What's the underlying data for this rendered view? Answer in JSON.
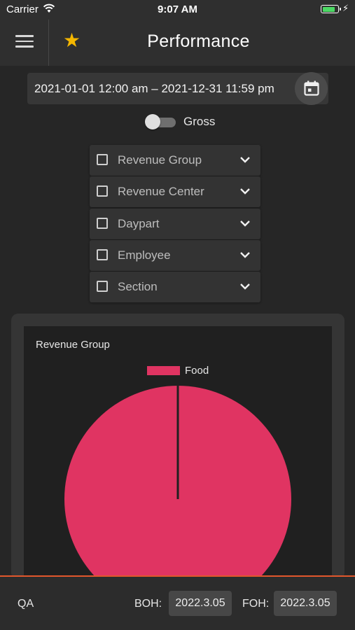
{
  "status_bar": {
    "carrier": "Carrier",
    "time": "9:07 AM",
    "battery_icon": "battery-charging-icon",
    "battery_level": 0.7
  },
  "app_bar": {
    "title": "Performance",
    "menu_icon": "hamburger-menu-icon",
    "favorite_icon": "star-icon",
    "favorite_color": "#f5b700"
  },
  "date_range": {
    "value": "2021-01-01 12:00 am – 2021-12-31 11:59 pm",
    "icon": "calendar-icon"
  },
  "gross_toggle": {
    "label": "Gross",
    "on": false
  },
  "filters": [
    {
      "label": "Revenue Group",
      "checked": false
    },
    {
      "label": "Revenue Center",
      "checked": false
    },
    {
      "label": "Daypart",
      "checked": false
    },
    {
      "label": "Employee",
      "checked": false
    },
    {
      "label": "Section",
      "checked": false
    }
  ],
  "chart_data": {
    "type": "pie",
    "title": "Revenue Group",
    "legend": [
      "Food"
    ],
    "legend_position": "top-center",
    "slices": [
      {
        "label": "Food",
        "value": 100,
        "color": "#e03462"
      }
    ]
  },
  "footer": {
    "env": "QA",
    "boh_label": "BOH:",
    "boh_version": "2022.3.05",
    "foh_label": "FOH:",
    "foh_version": "2022.3.05",
    "accent_color": "#e2572c"
  }
}
